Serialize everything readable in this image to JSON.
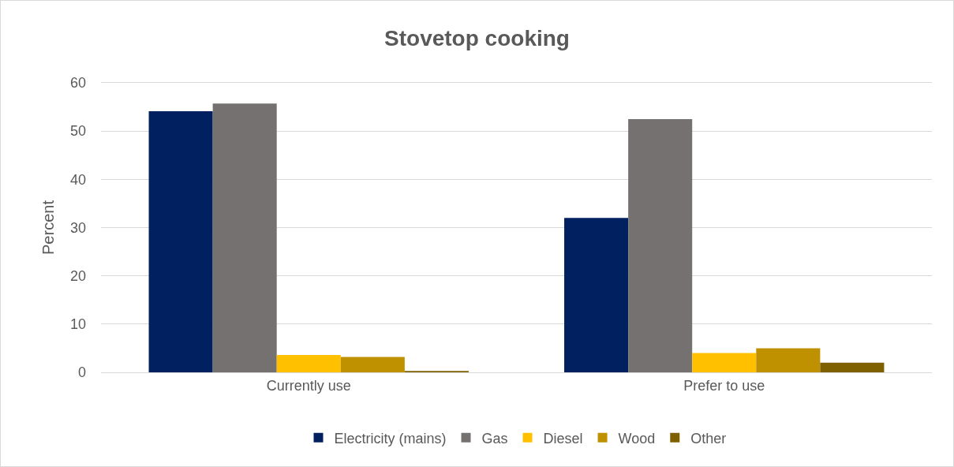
{
  "chart_data": {
    "type": "bar",
    "title": "Stovetop cooking",
    "ylabel": "Percent",
    "categories": [
      "Currently use",
      "Prefer to use"
    ],
    "series": [
      {
        "name": "Electricity (mains)",
        "color": "#002060",
        "values": [
          54.1,
          32.0
        ]
      },
      {
        "name": "Gas",
        "color": "#767171",
        "values": [
          55.7,
          52.5
        ]
      },
      {
        "name": "Diesel",
        "color": "#ffc000",
        "values": [
          3.6,
          4.0
        ]
      },
      {
        "name": "Wood",
        "color": "#bf9000",
        "values": [
          3.2,
          5.0
        ]
      },
      {
        "name": "Other",
        "color": "#7f6000",
        "values": [
          0.3,
          2.0
        ]
      }
    ],
    "ylim": [
      0,
      60
    ],
    "yticks": [
      0,
      10,
      20,
      30,
      40,
      50,
      60
    ],
    "grid": "y",
    "legend": "bottom"
  }
}
